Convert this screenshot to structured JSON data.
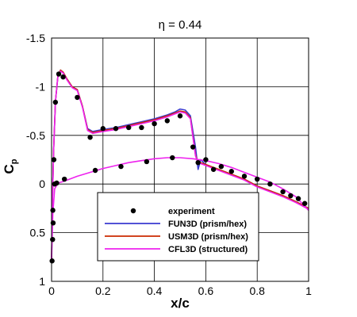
{
  "chart_data": {
    "type": "scatter",
    "title": "η = 0.44",
    "xlabel": "x/c",
    "ylabel": "C",
    "ylabel_sub": "p",
    "xlim": [
      0,
      1
    ],
    "ylim": [
      1,
      -1.5
    ],
    "y_inverted": true,
    "grid": true,
    "legend_position": "bottom-center",
    "x_ticks": [
      "0",
      "0.2",
      "0.4",
      "0.6",
      "0.8",
      "1"
    ],
    "x_tick_values": [
      0,
      0.2,
      0.4,
      0.6,
      0.8,
      1
    ],
    "y_ticks": [
      "-1.5",
      "-1",
      "-0.5",
      "0",
      "0.5",
      "1"
    ],
    "y_tick_values": [
      -1.5,
      -1,
      -0.5,
      0,
      0.5,
      1
    ],
    "series": [
      {
        "name": "experiment",
        "kind": "markers",
        "color": "#000000",
        "x": [
          0.002,
          0.004,
          0.006,
          0.009,
          0.015,
          0.028,
          0.045,
          0.1,
          0.15,
          0.2,
          0.25,
          0.3,
          0.35,
          0.4,
          0.45,
          0.5,
          0.55,
          0.57,
          0.6,
          0.63,
          0.66,
          0.7,
          0.75,
          0.8,
          0.85,
          0.9,
          0.93,
          0.96,
          0.985,
          0.005,
          0.012,
          0.02,
          0.05,
          0.17,
          0.27,
          0.37,
          0.47
        ],
        "y": [
          0.79,
          0.57,
          0.4,
          -0.25,
          -0.84,
          -1.13,
          -1.1,
          -0.89,
          -0.48,
          -0.57,
          -0.57,
          -0.58,
          -0.58,
          -0.62,
          -0.65,
          -0.7,
          -0.38,
          -0.22,
          -0.25,
          -0.15,
          -0.18,
          -0.13,
          -0.08,
          -0.05,
          0.0,
          0.08,
          0.12,
          0.15,
          0.2,
          0.27,
          0.0,
          -0.01,
          -0.05,
          -0.14,
          -0.18,
          -0.23,
          -0.27
        ]
      },
      {
        "name": "FUN3D (prism/hex)",
        "kind": "line",
        "color": "#3a3ad0",
        "x": [
          0.0,
          0.003,
          0.008,
          0.015,
          0.025,
          0.035,
          0.045,
          0.06,
          0.08,
          0.1,
          0.12,
          0.14,
          0.16,
          0.2,
          0.25,
          0.3,
          0.35,
          0.4,
          0.45,
          0.48,
          0.5,
          0.52,
          0.54,
          0.56,
          0.57,
          0.58,
          0.6,
          0.65,
          0.7,
          0.75,
          0.8,
          0.85,
          0.9,
          0.95,
          1.0
        ],
        "y": [
          0.79,
          0.2,
          -0.35,
          -0.85,
          -1.12,
          -1.17,
          -1.15,
          -1.08,
          -1.0,
          -0.97,
          -0.8,
          -0.57,
          -0.54,
          -0.56,
          -0.58,
          -0.61,
          -0.64,
          -0.67,
          -0.71,
          -0.74,
          -0.77,
          -0.76,
          -0.7,
          -0.38,
          -0.15,
          -0.25,
          -0.2,
          -0.15,
          -0.1,
          -0.05,
          0.02,
          0.07,
          0.12,
          0.18,
          0.25
        ]
      },
      {
        "name": "USM3D (prism/hex)",
        "kind": "line",
        "color": "#cc2a00",
        "x": [
          0.0,
          0.003,
          0.008,
          0.015,
          0.025,
          0.035,
          0.045,
          0.06,
          0.08,
          0.1,
          0.12,
          0.14,
          0.16,
          0.2,
          0.25,
          0.3,
          0.35,
          0.4,
          0.45,
          0.48,
          0.5,
          0.52,
          0.54,
          0.56,
          0.57,
          0.58,
          0.6,
          0.65,
          0.7,
          0.75,
          0.8,
          0.85,
          0.9,
          0.95,
          1.0
        ],
        "y": [
          0.79,
          0.2,
          -0.35,
          -0.85,
          -1.12,
          -1.17,
          -1.15,
          -1.08,
          -1.0,
          -0.97,
          -0.8,
          -0.56,
          -0.53,
          -0.55,
          -0.57,
          -0.6,
          -0.63,
          -0.66,
          -0.7,
          -0.73,
          -0.75,
          -0.74,
          -0.68,
          -0.3,
          -0.22,
          -0.22,
          -0.2,
          -0.15,
          -0.1,
          -0.05,
          0.02,
          0.07,
          0.12,
          0.18,
          0.25
        ]
      },
      {
        "name": "CFL3D (structured)",
        "kind": "line",
        "color": "#ee22ee",
        "x": [
          0.0,
          0.003,
          0.008,
          0.015,
          0.025,
          0.035,
          0.045,
          0.06,
          0.08,
          0.1,
          0.12,
          0.14,
          0.16,
          0.2,
          0.25,
          0.3,
          0.35,
          0.4,
          0.45,
          0.48,
          0.5,
          0.52,
          0.54,
          0.56,
          0.57,
          0.58,
          0.6,
          0.65,
          0.7,
          0.75,
          0.8,
          0.85,
          0.9,
          0.95,
          1.0
        ],
        "y": [
          0.79,
          0.2,
          -0.35,
          -0.85,
          -1.12,
          -1.16,
          -1.14,
          -1.07,
          -0.99,
          -0.96,
          -0.79,
          -0.55,
          -0.52,
          -0.54,
          -0.56,
          -0.59,
          -0.62,
          -0.65,
          -0.69,
          -0.72,
          -0.74,
          -0.73,
          -0.67,
          -0.29,
          -0.21,
          -0.21,
          -0.19,
          -0.14,
          -0.09,
          -0.04,
          0.03,
          0.08,
          0.13,
          0.19,
          0.26
        ]
      },
      {
        "name": "",
        "kind": "line",
        "color": "#ee22ee",
        "x": [
          0.0,
          0.005,
          0.012,
          0.025,
          0.05,
          0.1,
          0.15,
          0.2,
          0.25,
          0.3,
          0.35,
          0.4,
          0.45,
          0.5,
          0.55,
          0.6,
          0.65,
          0.7,
          0.75,
          0.8,
          0.85,
          0.9,
          0.95,
          1.0
        ],
        "y": [
          0.79,
          0.3,
          0.05,
          -0.01,
          -0.03,
          -0.08,
          -0.12,
          -0.16,
          -0.19,
          -0.22,
          -0.24,
          -0.26,
          -0.27,
          -0.27,
          -0.26,
          -0.24,
          -0.21,
          -0.17,
          -0.12,
          -0.07,
          -0.02,
          0.05,
          0.13,
          0.27
        ]
      }
    ]
  }
}
